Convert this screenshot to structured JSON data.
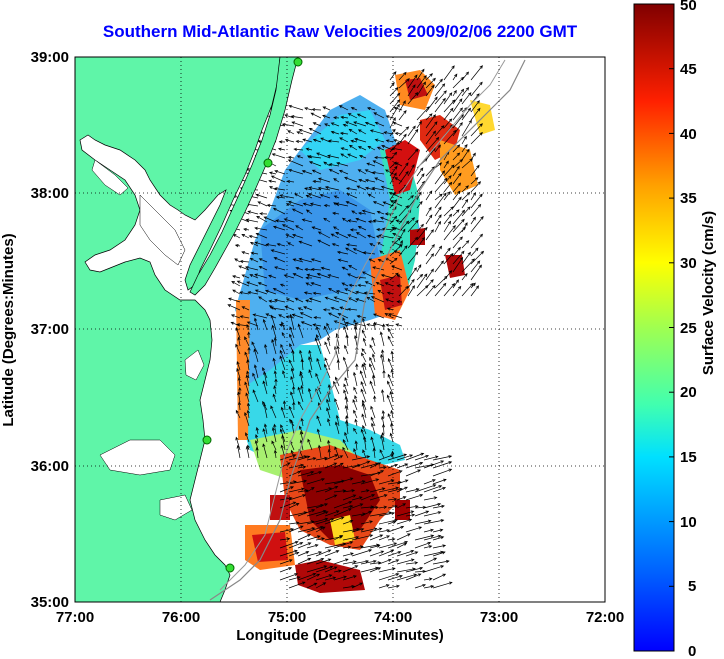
{
  "title": "Southern Mid-Atlantic Raw Velocities 2009/02/06 2200 GMT",
  "map": {
    "xlabel": "Longitude (Degrees:Minutes)",
    "ylabel": "Latitude (Degrees:Minutes)",
    "x_ticks": [
      "77:00",
      "76:00",
      "75:00",
      "74:00",
      "73:00",
      "72:00"
    ],
    "y_ticks": [
      "39:00",
      "38:00",
      "37:00",
      "36:00",
      "35:00"
    ],
    "lon_range": [
      -77,
      -72
    ],
    "lat_range": [
      35,
      39
    ],
    "land_color": "#5ff5a8",
    "grid": "dotted"
  },
  "colorbar": {
    "label": "Surface Velocity (cm/s)",
    "ticks": [
      "50",
      "45",
      "40",
      "35",
      "30",
      "25",
      "20",
      "15",
      "10",
      "5",
      "0"
    ],
    "range": [
      0,
      50
    ],
    "colormap": "jet"
  }
}
